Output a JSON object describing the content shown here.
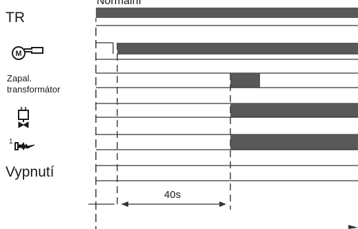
{
  "header_label": "Normální",
  "signals": [
    {
      "id": "tr",
      "label": "TR",
      "icon": null
    },
    {
      "id": "motor",
      "label": "",
      "icon": "fan-motor-icon"
    },
    {
      "id": "ignition",
      "label_line1": "Zapal.",
      "label_line2": "transformátor",
      "icon": null
    },
    {
      "id": "valve",
      "label": "",
      "icon": "solenoid-valve-icon"
    },
    {
      "id": "flame",
      "label": "",
      "icon": "burner-flame-icon",
      "icon_prefix": "1"
    },
    {
      "id": "shutdown",
      "label": "Vypnutí",
      "icon": null
    }
  ],
  "timing": {
    "duration_label": "40s"
  },
  "colors": {
    "bar_fill": "#595959",
    "line": "#333333"
  }
}
